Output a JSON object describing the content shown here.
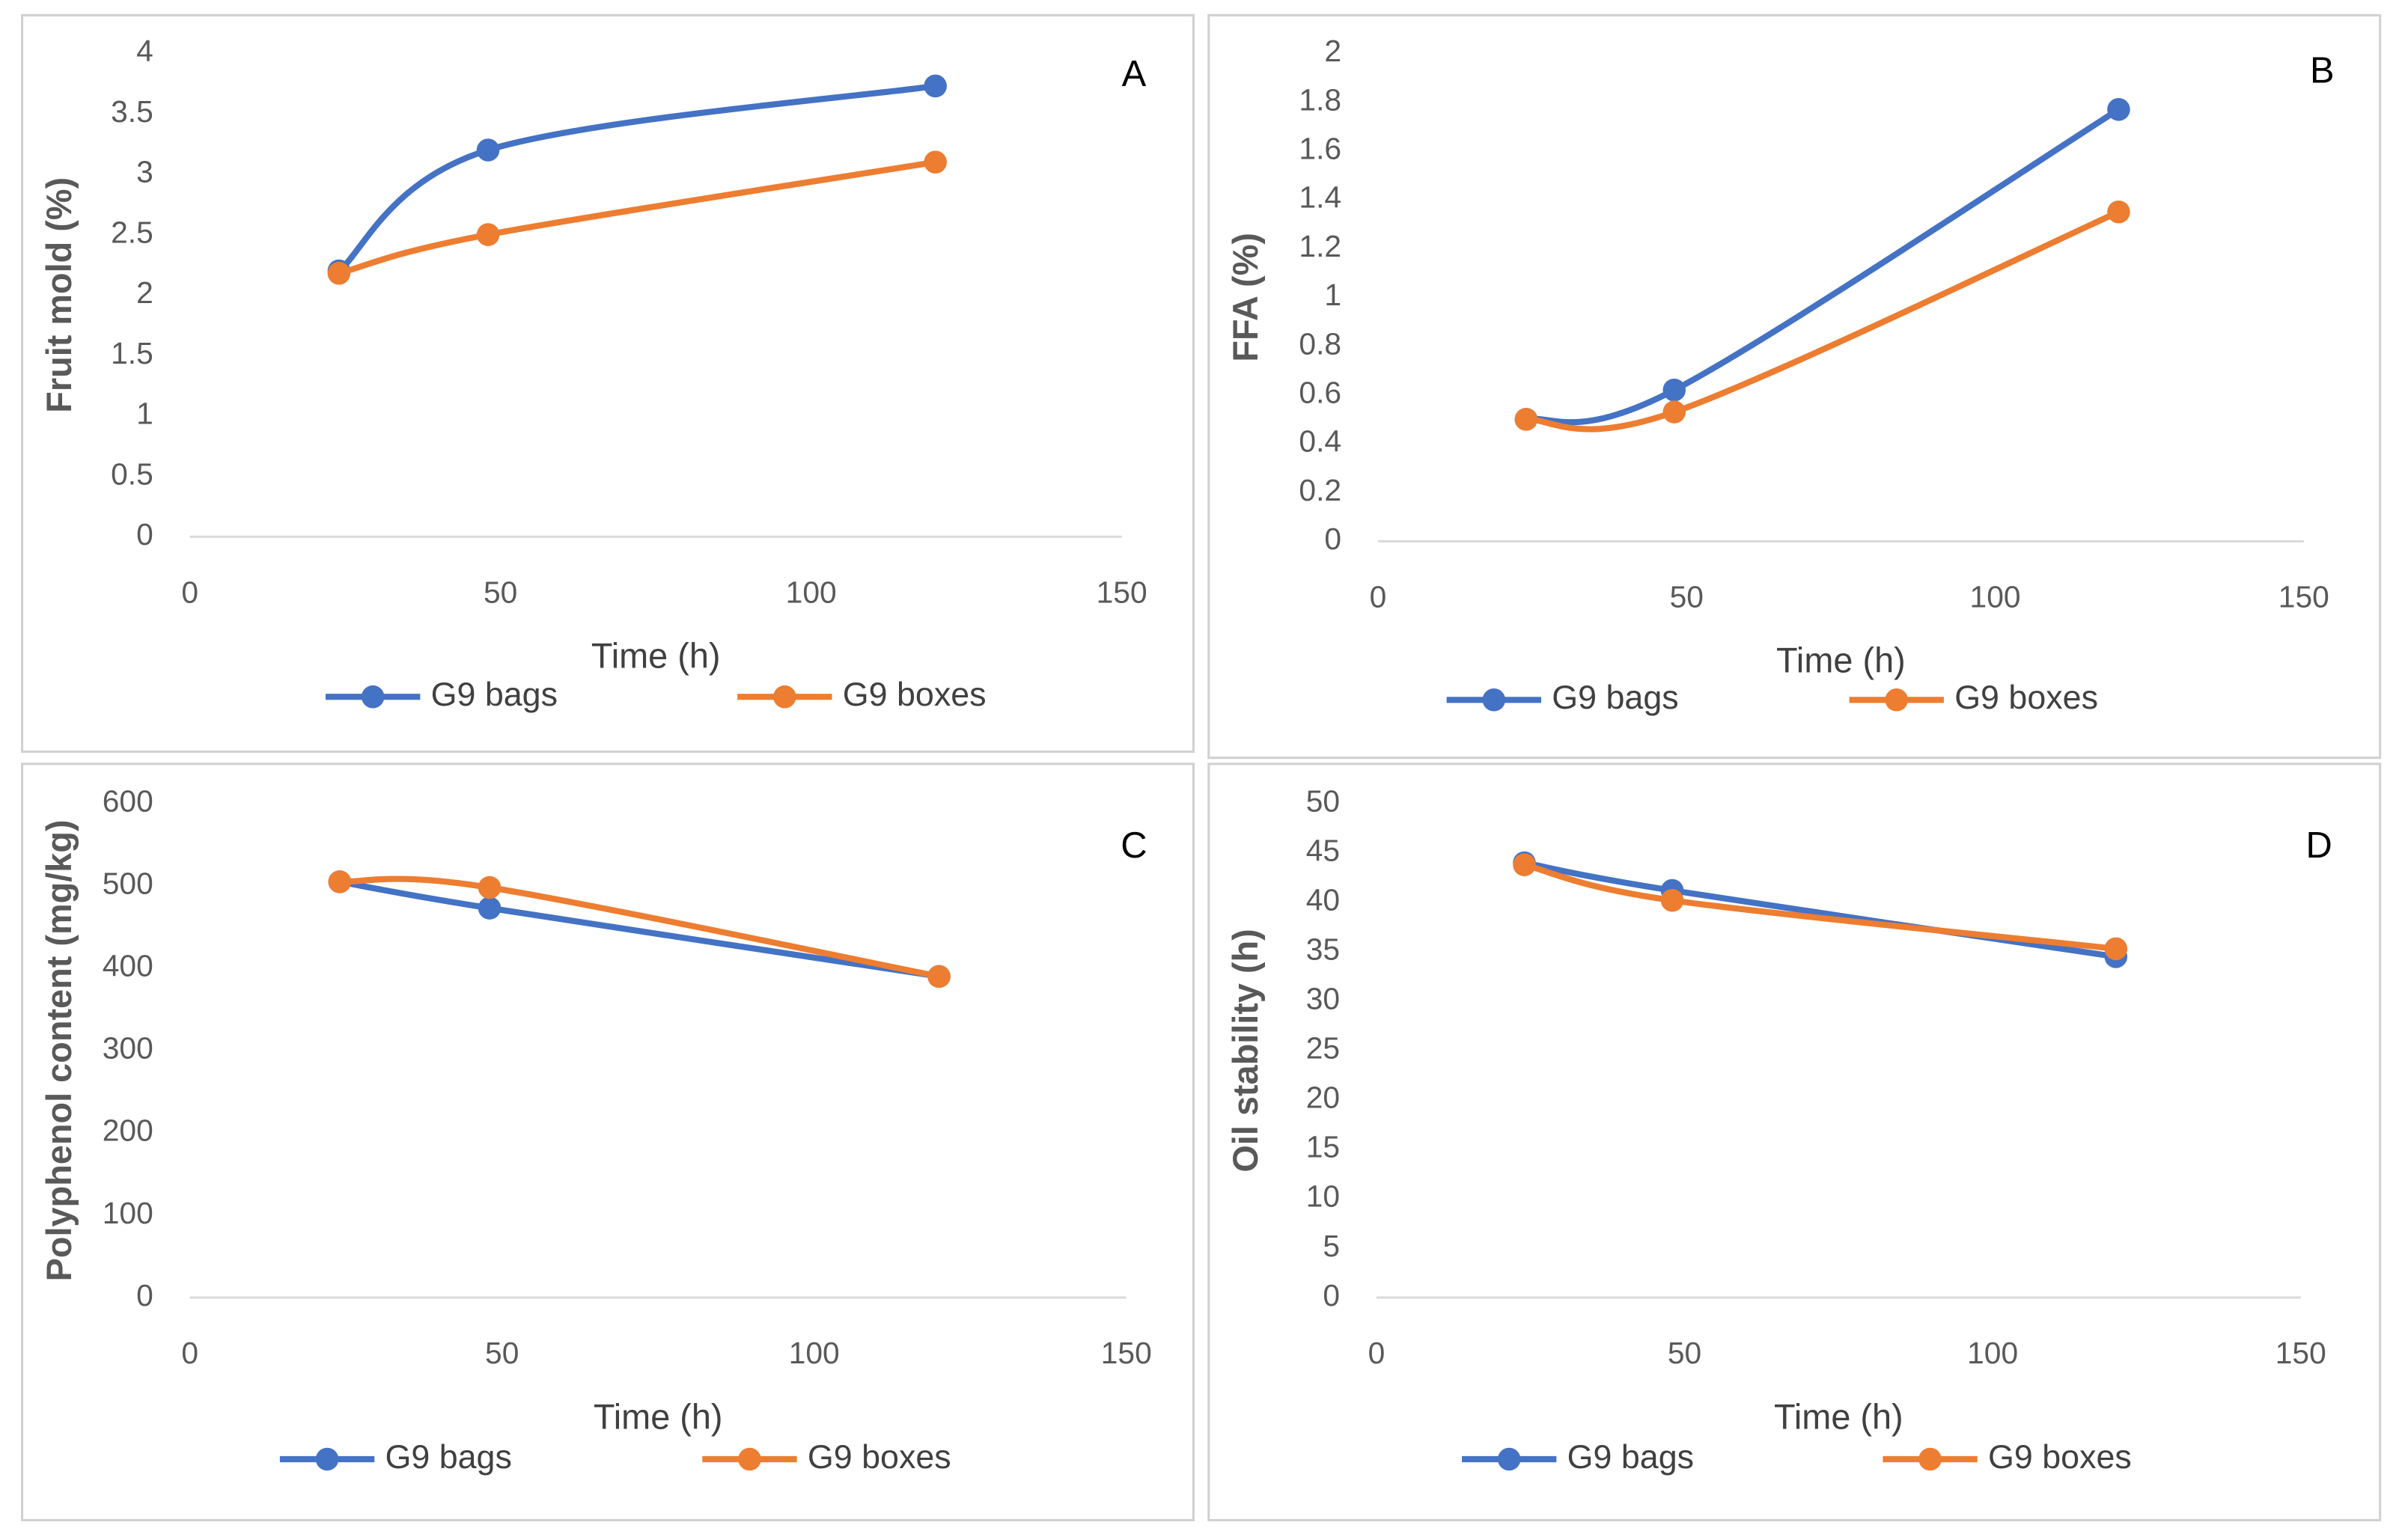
{
  "chart_data": [
    {
      "type": "line",
      "panel_label": "A",
      "y_label": "Fruit mold (%)",
      "x_label": "Time (h)",
      "x": [
        24,
        48,
        120
      ],
      "xlim": [
        0,
        150
      ],
      "xticks": [
        0,
        50,
        100,
        150
      ],
      "ylim": [
        0,
        4
      ],
      "yticks": [
        0,
        0.5,
        1,
        1.5,
        2,
        2.5,
        3,
        3.5,
        4
      ],
      "series": [
        {
          "name": "G9 bags",
          "color": "#4472c4",
          "values": [
            2.2,
            3.2,
            3.73
          ]
        },
        {
          "name": "G9 boxes",
          "color": "#ed7d31",
          "values": [
            2.18,
            2.5,
            3.1
          ]
        }
      ]
    },
    {
      "type": "line",
      "panel_label": "B",
      "y_label": "FFA (%)",
      "x_label": "Time (h)",
      "x": [
        24,
        48,
        120
      ],
      "xlim": [
        0,
        150
      ],
      "xticks": [
        0,
        50,
        100,
        150
      ],
      "ylim": [
        0,
        2
      ],
      "yticks": [
        0,
        0.2,
        0.4,
        0.6,
        0.8,
        1,
        1.2,
        1.4,
        1.6,
        1.8,
        2
      ],
      "series": [
        {
          "name": "G9 bags",
          "color": "#4472c4",
          "values": [
            0.5,
            0.62,
            1.77
          ]
        },
        {
          "name": "G9 boxes",
          "color": "#ed7d31",
          "values": [
            0.5,
            0.53,
            1.35
          ]
        }
      ]
    },
    {
      "type": "line",
      "panel_label": "C",
      "y_label": "Polyphenol content (mg/kg)",
      "x_label": "Time (h)",
      "x": [
        24,
        48,
        120
      ],
      "xlim": [
        0,
        150
      ],
      "xticks": [
        0,
        50,
        100,
        150
      ],
      "ylim": [
        0,
        600
      ],
      "yticks": [
        0,
        100,
        200,
        300,
        400,
        500,
        600
      ],
      "series": [
        {
          "name": "G9 bags",
          "color": "#4472c4",
          "values": [
            505,
            473,
            390
          ]
        },
        {
          "name": "G9 boxes",
          "color": "#ed7d31",
          "values": [
            505,
            498,
            390
          ]
        }
      ]
    },
    {
      "type": "line",
      "panel_label": "D",
      "y_label": "Oil stability (h)",
      "x_label": "Time (h)",
      "x": [
        24,
        48,
        120
      ],
      "xlim": [
        0,
        150
      ],
      "xticks": [
        0,
        50,
        100,
        150
      ],
      "ylim": [
        0,
        50
      ],
      "yticks": [
        0,
        5,
        10,
        15,
        20,
        25,
        30,
        35,
        40,
        45,
        50
      ],
      "series": [
        {
          "name": "G9 bags",
          "color": "#4472c4",
          "values": [
            44,
            41.2,
            34.5
          ]
        },
        {
          "name": "G9 boxes",
          "color": "#ed7d31",
          "values": [
            43.8,
            40.2,
            35.3
          ]
        }
      ]
    }
  ]
}
